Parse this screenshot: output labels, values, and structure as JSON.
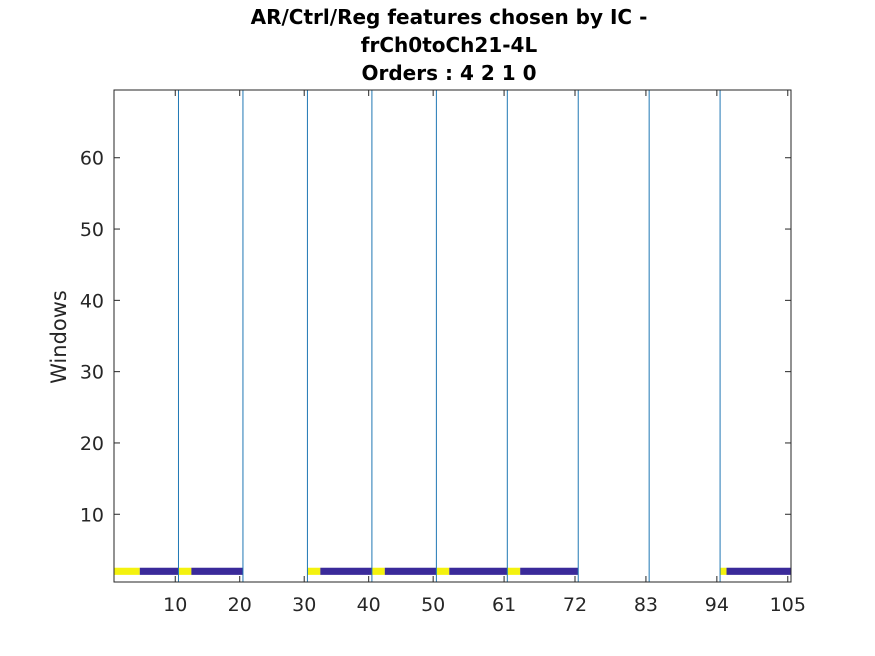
{
  "chart_data": {
    "type": "heatmap",
    "title_lines": [
      "AR/Ctrl/Reg features chosen by IC -",
      "frCh0toCh21-4L",
      "Orders : 4 2 1 0"
    ],
    "xlabel": "",
    "ylabel": "Windows",
    "xlim": [
      0.5,
      105.5
    ],
    "ylim": [
      0.5,
      69.5
    ],
    "xticks": [
      10,
      20,
      30,
      40,
      50,
      61,
      72,
      83,
      94,
      105
    ],
    "yticks": [
      10,
      20,
      30,
      40,
      50,
      60
    ],
    "separators": [
      10.5,
      20.5,
      30.5,
      40.5,
      50.5,
      61.5,
      72.5,
      83.5,
      94.5
    ],
    "colors": {
      "chosen": "#f4f20f",
      "not_chosen": "#3a2a9a",
      "separator": "#1f77b4",
      "axis": "#262626"
    },
    "row_window": 2,
    "segments": [
      {
        "from": 1,
        "to": 4,
        "state": "chosen"
      },
      {
        "from": 5,
        "to": 10,
        "state": "not_chosen"
      },
      {
        "from": 11,
        "to": 12,
        "state": "chosen"
      },
      {
        "from": 13,
        "to": 20,
        "state": "not_chosen"
      },
      {
        "from": 31,
        "to": 32,
        "state": "chosen"
      },
      {
        "from": 33,
        "to": 40,
        "state": "not_chosen"
      },
      {
        "from": 41,
        "to": 42,
        "state": "chosen"
      },
      {
        "from": 43,
        "to": 50,
        "state": "not_chosen"
      },
      {
        "from": 51,
        "to": 52,
        "state": "chosen"
      },
      {
        "from": 53,
        "to": 61,
        "state": "not_chosen"
      },
      {
        "from": 62,
        "to": 63,
        "state": "chosen"
      },
      {
        "from": 64,
        "to": 72,
        "state": "not_chosen"
      },
      {
        "from": 95,
        "to": 95,
        "state": "chosen"
      },
      {
        "from": 96,
        "to": 105,
        "state": "not_chosen"
      }
    ]
  }
}
